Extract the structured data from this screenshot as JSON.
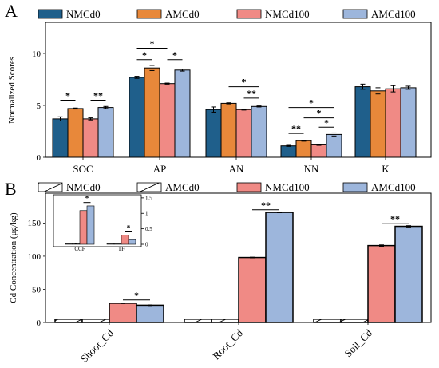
{
  "figure": {
    "colors": {
      "NMCd0": "#1f5f8b",
      "AMCd0": "#e8883a",
      "NMCd100": "#f08a85",
      "AMCd100": "#9db6dc",
      "hatch": "#ffffff"
    }
  },
  "chart_data": [
    {
      "panel": "A",
      "type": "bar",
      "legend": [
        "NMCd0",
        "AMCd0",
        "NMCd100",
        "AMCd100"
      ],
      "legend_placement": "top",
      "categories": [
        "SOC",
        "AP",
        "AN",
        "NN",
        "K"
      ],
      "ylabel": "Normalized Scores",
      "xlabel": "",
      "ylim": [
        0,
        13
      ],
      "yticks": [
        "0",
        "5",
        "10"
      ],
      "series": [
        {
          "name": "NMCd0",
          "values": [
            3.7,
            7.7,
            4.6,
            1.1,
            6.8
          ],
          "errors": [
            0.2,
            0.1,
            0.25,
            0.05,
            0.25
          ]
        },
        {
          "name": "AMCd0",
          "values": [
            4.7,
            8.6,
            5.2,
            1.6,
            6.4
          ],
          "errors": [
            0.05,
            0.25,
            0.05,
            0.05,
            0.3
          ]
        },
        {
          "name": "NMCd100",
          "values": [
            3.7,
            7.1,
            4.6,
            1.2,
            6.6
          ],
          "errors": [
            0.1,
            0.05,
            0.05,
            0.05,
            0.3
          ]
        },
        {
          "name": "AMCd100",
          "values": [
            4.8,
            8.4,
            4.9,
            2.2,
            6.7
          ],
          "errors": [
            0.1,
            0.1,
            0.05,
            0.15,
            0.15
          ]
        }
      ],
      "significance": [
        {
          "category": "SOC",
          "from": 0,
          "to": 1,
          "y": 5.5,
          "label": "*"
        },
        {
          "category": "SOC",
          "from": 2,
          "to": 3,
          "y": 5.5,
          "label": "**"
        },
        {
          "category": "AP",
          "from": 0,
          "to": 1,
          "y": 9.4,
          "label": "*"
        },
        {
          "category": "AP",
          "from": 0,
          "to": 2,
          "y": 10.5,
          "label": "*"
        },
        {
          "category": "AP",
          "from": 2,
          "to": 3,
          "y": 9.4,
          "label": "*"
        },
        {
          "category": "AN",
          "from": 1,
          "to": 3,
          "y": 6.8,
          "label": "*"
        },
        {
          "category": "AN",
          "from": 2,
          "to": 3,
          "y": 5.7,
          "label": "**"
        },
        {
          "category": "NN",
          "from": 0,
          "to": 1,
          "y": 2.3,
          "label": "**"
        },
        {
          "category": "NN",
          "from": 0,
          "to": 3,
          "y": 4.8,
          "label": "*"
        },
        {
          "category": "NN",
          "from": 1,
          "to": 3,
          "y": 3.8,
          "label": "*"
        },
        {
          "category": "NN",
          "from": 2,
          "to": 3,
          "y": 2.9,
          "label": "*"
        }
      ]
    },
    {
      "panel": "B",
      "type": "bar",
      "legend": [
        "NMCd0",
        "AMCd0",
        "NMCd100",
        "AMCd100"
      ],
      "legend_placement": "top",
      "categories": [
        "Shoot_Cd",
        "Root_Cd",
        "Soil_Cd"
      ],
      "ylabel": "Cd Concentration (μg/kg)",
      "xlabel": "",
      "ylim": [
        0,
        195
      ],
      "yticks": [
        "0",
        "50",
        "100",
        "150"
      ],
      "series": [
        {
          "name": "NMCd0",
          "values": [
            5,
            5,
            5
          ],
          "errors": [
            0,
            0,
            0
          ],
          "hatched": true
        },
        {
          "name": "AMCd0",
          "values": [
            5,
            5,
            5
          ],
          "errors": [
            0,
            0,
            0
          ],
          "hatched": true
        },
        {
          "name": "NMCd100",
          "values": [
            29,
            98,
            116
          ],
          "errors": [
            0.5,
            0.5,
            1
          ]
        },
        {
          "name": "AMCd100",
          "values": [
            26,
            166,
            145
          ],
          "errors": [
            0.5,
            0.5,
            1
          ]
        }
      ],
      "significance": [
        {
          "category": "Shoot_Cd",
          "from": 2,
          "to": 3,
          "y": 34,
          "label": "*"
        },
        {
          "category": "Root_Cd",
          "from": 2,
          "to": 3,
          "y": 170,
          "label": "**"
        },
        {
          "category": "Soil_Cd",
          "from": 2,
          "to": 3,
          "y": 149,
          "label": "**"
        }
      ]
    },
    {
      "panel": "B-inset",
      "type": "bar",
      "categories": [
        "CCF",
        "TF"
      ],
      "ylim": [
        0,
        1.6
      ],
      "yticks": [
        "0",
        "0.5",
        "1",
        "1.5"
      ],
      "series": [
        {
          "name": "NMCd0",
          "values": [
            0.02,
            0.02
          ],
          "hatched": true
        },
        {
          "name": "AMCd0",
          "values": [
            0.02,
            0.02
          ],
          "hatched": true
        },
        {
          "name": "NMCd100",
          "values": [
            1.09,
            0.3
          ]
        },
        {
          "name": "AMCd100",
          "values": [
            1.24,
            0.15
          ]
        }
      ],
      "significance": [
        {
          "category": "CCF",
          "from": 2,
          "to": 3,
          "y": 1.35,
          "label": "*"
        },
        {
          "category": "TF",
          "from": 2,
          "to": 3,
          "y": 0.4,
          "label": "*"
        }
      ]
    }
  ]
}
